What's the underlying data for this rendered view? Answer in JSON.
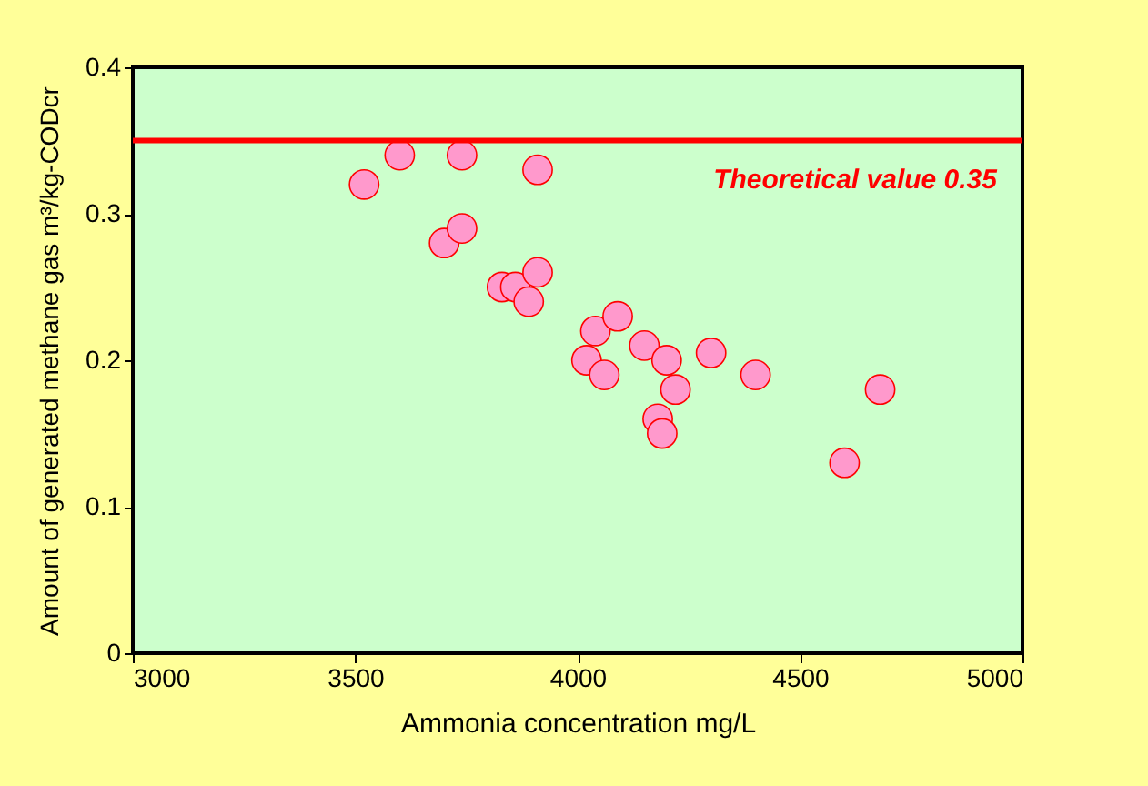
{
  "chart_data": {
    "type": "scatter",
    "xlabel": "Ammonia concentration mg/L",
    "ylabel": "Amount of generated methane gas m³/kg-CODcr",
    "x": [
      3520,
      3600,
      3740,
      3910,
      3700,
      3740,
      3830,
      3860,
      3910,
      3890,
      4020,
      4040,
      4090,
      4060,
      4150,
      4200,
      4220,
      4180,
      4190,
      4300,
      4400,
      4600,
      4680
    ],
    "series": [
      {
        "color": "#ff99cc",
        "values": [
          0.32,
          0.34,
          0.34,
          0.33,
          0.28,
          0.29,
          0.25,
          0.25,
          0.26,
          0.24,
          0.2,
          0.22,
          0.23,
          0.19,
          0.21,
          0.2,
          0.18,
          0.16,
          0.15,
          0.205,
          0.19,
          0.13,
          0.18
        ]
      }
    ],
    "xlim": [
      3000,
      5000
    ],
    "xticks": [
      3000,
      3500,
      4000,
      4500,
      5000
    ],
    "ylim": [
      0,
      0.4
    ],
    "yticks": [
      0,
      0.1,
      0.2,
      0.3,
      0.4
    ],
    "ref_lines": [
      {
        "axis": "y",
        "value": 0.35,
        "label": "Theoretical value 0.35",
        "color": "#ff0000"
      }
    ],
    "grid": false,
    "marker": "circle"
  }
}
